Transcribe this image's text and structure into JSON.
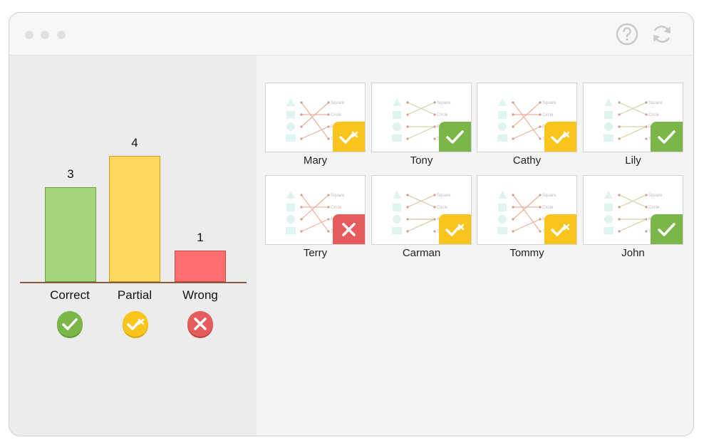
{
  "window": {
    "icons": {
      "help": "help-icon",
      "refresh": "refresh-icon"
    }
  },
  "chart_data": {
    "type": "bar",
    "categories": [
      "Correct",
      "Partial",
      "Wrong"
    ],
    "values": [
      3,
      4,
      1
    ],
    "colors": [
      "#a3d57a",
      "#ffd65e",
      "#ff6e6e"
    ],
    "ylim": [
      0,
      4.5
    ],
    "grid": false,
    "legend": "none"
  },
  "students": [
    {
      "name": "Mary",
      "status": "partial"
    },
    {
      "name": "Tony",
      "status": "correct"
    },
    {
      "name": "Cathy",
      "status": "partial"
    },
    {
      "name": "Lily",
      "status": "correct"
    },
    {
      "name": "Terry",
      "status": "wrong"
    },
    {
      "name": "Carman",
      "status": "partial"
    },
    {
      "name": "Tommy",
      "status": "partial"
    },
    {
      "name": "John",
      "status": "correct"
    }
  ],
  "thumbnail_labels": [
    "Square",
    "Circle",
    "R",
    "T"
  ],
  "status_colors": {
    "correct": "#7ab648",
    "partial": "#f9c41c",
    "wrong": "#e65c5c"
  }
}
